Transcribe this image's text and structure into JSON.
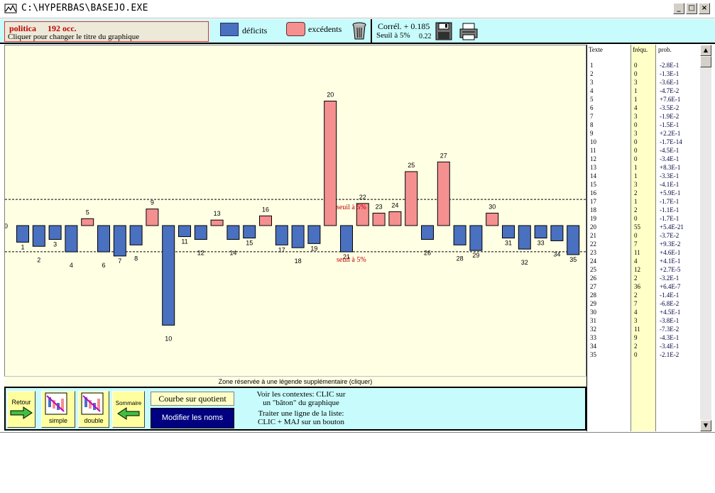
{
  "window": {
    "title": "C:\\HYPERBAS\\BASEJO.EXE",
    "min": "_",
    "max": "□",
    "close": "×"
  },
  "header": {
    "word": "politica",
    "count": "192 occ.",
    "subtitle": "Cliquer pour changer le titre du graphique",
    "legend_deficit": "déficits",
    "legend_excedent": "excédents",
    "correl": "Corrél. + 0.185",
    "seuil": "Seuil à 5%",
    "seuil_value": "0.22"
  },
  "colors": {
    "deficit": "#4a70c0",
    "excedent": "#f49090",
    "chart_bg": "#ffffe4",
    "panel": "#c8fcfc",
    "seuil_label": "#c00000"
  },
  "chart_data": {
    "type": "bar",
    "zero_label": "0",
    "threshold_label": "seuil à 5%",
    "threshold": 1.8,
    "categories": [
      "1",
      "2",
      "3",
      "4",
      "5",
      "6",
      "7",
      "8",
      "9",
      "10",
      "11",
      "12",
      "13",
      "14",
      "15",
      "16",
      "17",
      "18",
      "19",
      "20",
      "21",
      "22",
      "23",
      "24",
      "25",
      "26",
      "27",
      "28",
      "29",
      "30",
      "31",
      "32",
      "33",
      "34",
      "35"
    ],
    "values": [
      -1.2,
      -1.5,
      -1.0,
      -1.9,
      0.5,
      -1.9,
      -2.2,
      -1.4,
      1.2,
      -7.2,
      -0.8,
      -1.0,
      0.4,
      -1.0,
      -0.9,
      0.7,
      -1.4,
      -1.6,
      -1.3,
      9.0,
      -1.9,
      1.6,
      0.9,
      1.0,
      3.9,
      -1.0,
      4.6,
      -1.4,
      -1.8,
      0.9,
      -0.9,
      -1.7,
      -0.9,
      -1.1,
      -2.1
    ],
    "ylim": [
      -9,
      10
    ]
  },
  "legend_zone": "Zone réservée à une légende supplémentaire (cliquer)",
  "buttons": {
    "retour": "Retour",
    "simple": "simple",
    "double": "double",
    "sommaire": "Sommaire",
    "courbe": "Courbe sur quotient",
    "modifier": "Modifier les noms"
  },
  "help": {
    "line1": "Voir les contextes: CLIC sur",
    "line2": "un \"bâton\" du graphique",
    "line3": "Traiter une ligne de la liste:",
    "line4": "CLIC + MAJ sur un bouton"
  },
  "list": {
    "headers": {
      "texte": "Texte",
      "frequ": "fréqu.",
      "prob": "prob."
    },
    "rows": [
      {
        "t": "1",
        "f": "0",
        "p": "-2.8E-1"
      },
      {
        "t": "2",
        "f": "0",
        "p": "-1.3E-1"
      },
      {
        "t": "3",
        "f": "3",
        "p": "-3.6E-1"
      },
      {
        "t": "4",
        "f": "1",
        "p": "-4.7E-2"
      },
      {
        "t": "5",
        "f": "1",
        "p": "+7.6E-1"
      },
      {
        "t": "6",
        "f": "4",
        "p": "-3.5E-2"
      },
      {
        "t": "7",
        "f": "3",
        "p": "-1.9E-2"
      },
      {
        "t": "8",
        "f": "0",
        "p": "-1.5E-1"
      },
      {
        "t": "9",
        "f": "3",
        "p": "+2.2E-1"
      },
      {
        "t": "10",
        "f": "0",
        "p": "-1.7E-14"
      },
      {
        "t": "11",
        "f": "0",
        "p": "-4.5E-1"
      },
      {
        "t": "12",
        "f": "0",
        "p": "-3.4E-1"
      },
      {
        "t": "13",
        "f": "1",
        "p": "+8.3E-1"
      },
      {
        "t": "14",
        "f": "1",
        "p": "-3.3E-1"
      },
      {
        "t": "15",
        "f": "3",
        "p": "-4.1E-1"
      },
      {
        "t": "16",
        "f": "2",
        "p": "+5.9E-1"
      },
      {
        "t": "17",
        "f": "1",
        "p": "-1.7E-1"
      },
      {
        "t": "18",
        "f": "2",
        "p": "-1.1E-1"
      },
      {
        "t": "19",
        "f": "0",
        "p": "-1.7E-1"
      },
      {
        "t": "20",
        "f": "55",
        "p": "+5.4E-21"
      },
      {
        "t": "21",
        "f": "0",
        "p": "-3.7E-2"
      },
      {
        "t": "22",
        "f": "7",
        "p": "+9.3E-2"
      },
      {
        "t": "23",
        "f": "11",
        "p": "+4.6E-1"
      },
      {
        "t": "24",
        "f": "4",
        "p": "+4.1E-1"
      },
      {
        "t": "25",
        "f": "12",
        "p": "+2.7E-5"
      },
      {
        "t": "26",
        "f": "2",
        "p": "-3.2E-1"
      },
      {
        "t": "27",
        "f": "36",
        "p": "+6.4E-7"
      },
      {
        "t": "28",
        "f": "2",
        "p": "-1.4E-1"
      },
      {
        "t": "29",
        "f": "7",
        "p": "-6.8E-2"
      },
      {
        "t": "30",
        "f": "4",
        "p": "+4.5E-1"
      },
      {
        "t": "31",
        "f": "3",
        "p": "-3.8E-1"
      },
      {
        "t": "32",
        "f": "11",
        "p": "-7.3E-2"
      },
      {
        "t": "33",
        "f": "9",
        "p": "-4.3E-1"
      },
      {
        "t": "34",
        "f": "2",
        "p": "-3.4E-1"
      },
      {
        "t": "35",
        "f": "0",
        "p": "-2.1E-2"
      }
    ]
  },
  "scrollbar": {
    "up": "▲",
    "down": "▼"
  }
}
